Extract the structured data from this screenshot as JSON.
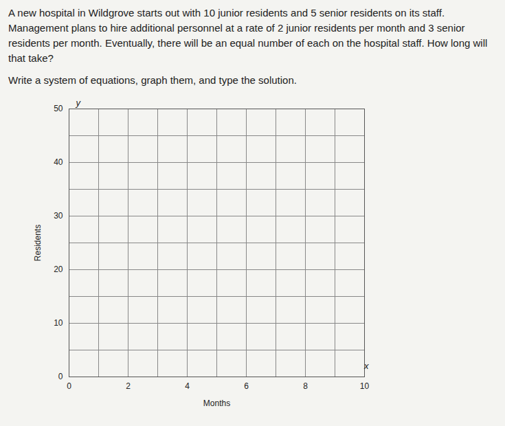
{
  "chart_data": {
    "type": "line",
    "title": "A new hospital in Wildgrove starts out with 10 junior residents and 5 senior residents on its staff. Management plans to hire additional personnel at a rate of 2 junior residents per month and 3 senior residents per month. Eventually, there will be an equal number of each on the hospital staff. How long will that take?",
    "subtitle": "Write a system of equations, graph them, and type the solution.",
    "x_label": "Months",
    "y_label": "Residents",
    "annotations": [
      "y",
      "x"
    ],
    "xlim": [
      0,
      10
    ],
    "xticks": [
      0,
      2,
      4,
      6,
      8,
      10
    ],
    "ylim": [
      0,
      50
    ],
    "yticks": [
      0,
      10,
      20,
      30,
      40,
      50
    ],
    "grid": true,
    "series": []
  }
}
